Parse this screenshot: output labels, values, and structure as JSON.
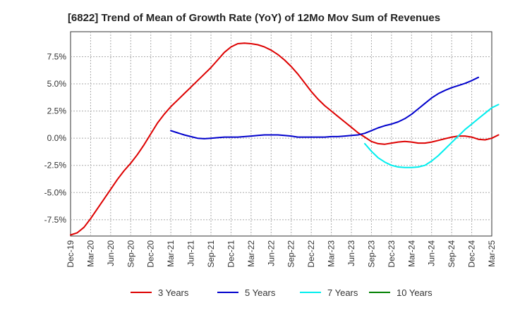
{
  "chart_data": {
    "type": "line",
    "title": "[6822]  Trend of Mean of Growth Rate (YoY) of 12Mo Mov Sum of Revenues",
    "xlabel": "",
    "ylabel": "",
    "x_tick_labels": [
      "Dec-19",
      "Mar-20",
      "Jun-20",
      "Sep-20",
      "Dec-20",
      "Mar-21",
      "Jun-21",
      "Sep-21",
      "Dec-21",
      "Mar-22",
      "Jun-22",
      "Sep-22",
      "Dec-22",
      "Mar-23",
      "Jun-23",
      "Sep-23",
      "Dec-23",
      "Mar-24",
      "Jun-24",
      "Sep-24",
      "Dec-24",
      "Mar-25"
    ],
    "y_ticks": [
      -7.5,
      -5.0,
      -2.5,
      0.0,
      2.5,
      5.0,
      7.5
    ],
    "y_tick_labels": [
      "-7.5%",
      "-5.0%",
      "-2.5%",
      "0.0%",
      "2.5%",
      "5.0%",
      "7.5%"
    ],
    "ylim": [
      -9.0,
      9.8
    ],
    "grid": true,
    "legend_position": "bottom",
    "series": [
      {
        "name": "3 Years",
        "color": "#dd0000",
        "start_index": 0,
        "values": [
          -8.9,
          -8.7,
          -8.2,
          -7.4,
          -6.5,
          -5.6,
          -4.7,
          -3.8,
          -3.0,
          -2.3,
          -1.5,
          -0.6,
          0.4,
          1.4,
          2.2,
          2.9,
          3.5,
          4.1,
          4.7,
          5.3,
          5.9,
          6.5,
          7.2,
          7.9,
          8.4,
          8.7,
          8.75,
          8.7,
          8.6,
          8.4,
          8.1,
          7.7,
          7.2,
          6.6,
          5.9,
          5.1,
          4.3,
          3.6,
          3.0,
          2.5,
          2.0,
          1.5,
          1.0,
          0.5,
          0.1,
          -0.3,
          -0.5,
          -0.55,
          -0.45,
          -0.35,
          -0.3,
          -0.35,
          -0.45,
          -0.45,
          -0.35,
          -0.2,
          -0.05,
          0.1,
          0.2,
          0.2,
          0.1,
          -0.1,
          -0.15,
          0.0,
          0.3
        ]
      },
      {
        "name": "5 Years",
        "color": "#0000cc",
        "start_index": 15,
        "values": [
          0.7,
          0.5,
          0.3,
          0.15,
          0.0,
          -0.05,
          0.0,
          0.05,
          0.1,
          0.1,
          0.1,
          0.15,
          0.2,
          0.25,
          0.3,
          0.3,
          0.3,
          0.25,
          0.2,
          0.1,
          0.1,
          0.1,
          0.1,
          0.1,
          0.15,
          0.15,
          0.2,
          0.25,
          0.3,
          0.45,
          0.7,
          0.95,
          1.15,
          1.3,
          1.5,
          1.8,
          2.2,
          2.7,
          3.2,
          3.7,
          4.1,
          4.4,
          4.65,
          4.85,
          5.05,
          5.3,
          5.6
        ]
      },
      {
        "name": "7 Years",
        "color": "#00eeee",
        "start_index": 44,
        "values": [
          -0.5,
          -1.2,
          -1.8,
          -2.2,
          -2.5,
          -2.65,
          -2.7,
          -2.7,
          -2.65,
          -2.5,
          -2.1,
          -1.6,
          -1.0,
          -0.4,
          0.2,
          0.8,
          1.3,
          1.8,
          2.3,
          2.8,
          3.1
        ]
      },
      {
        "name": "10 Years",
        "color": "#008000",
        "start_index": 0,
        "values": []
      }
    ]
  }
}
